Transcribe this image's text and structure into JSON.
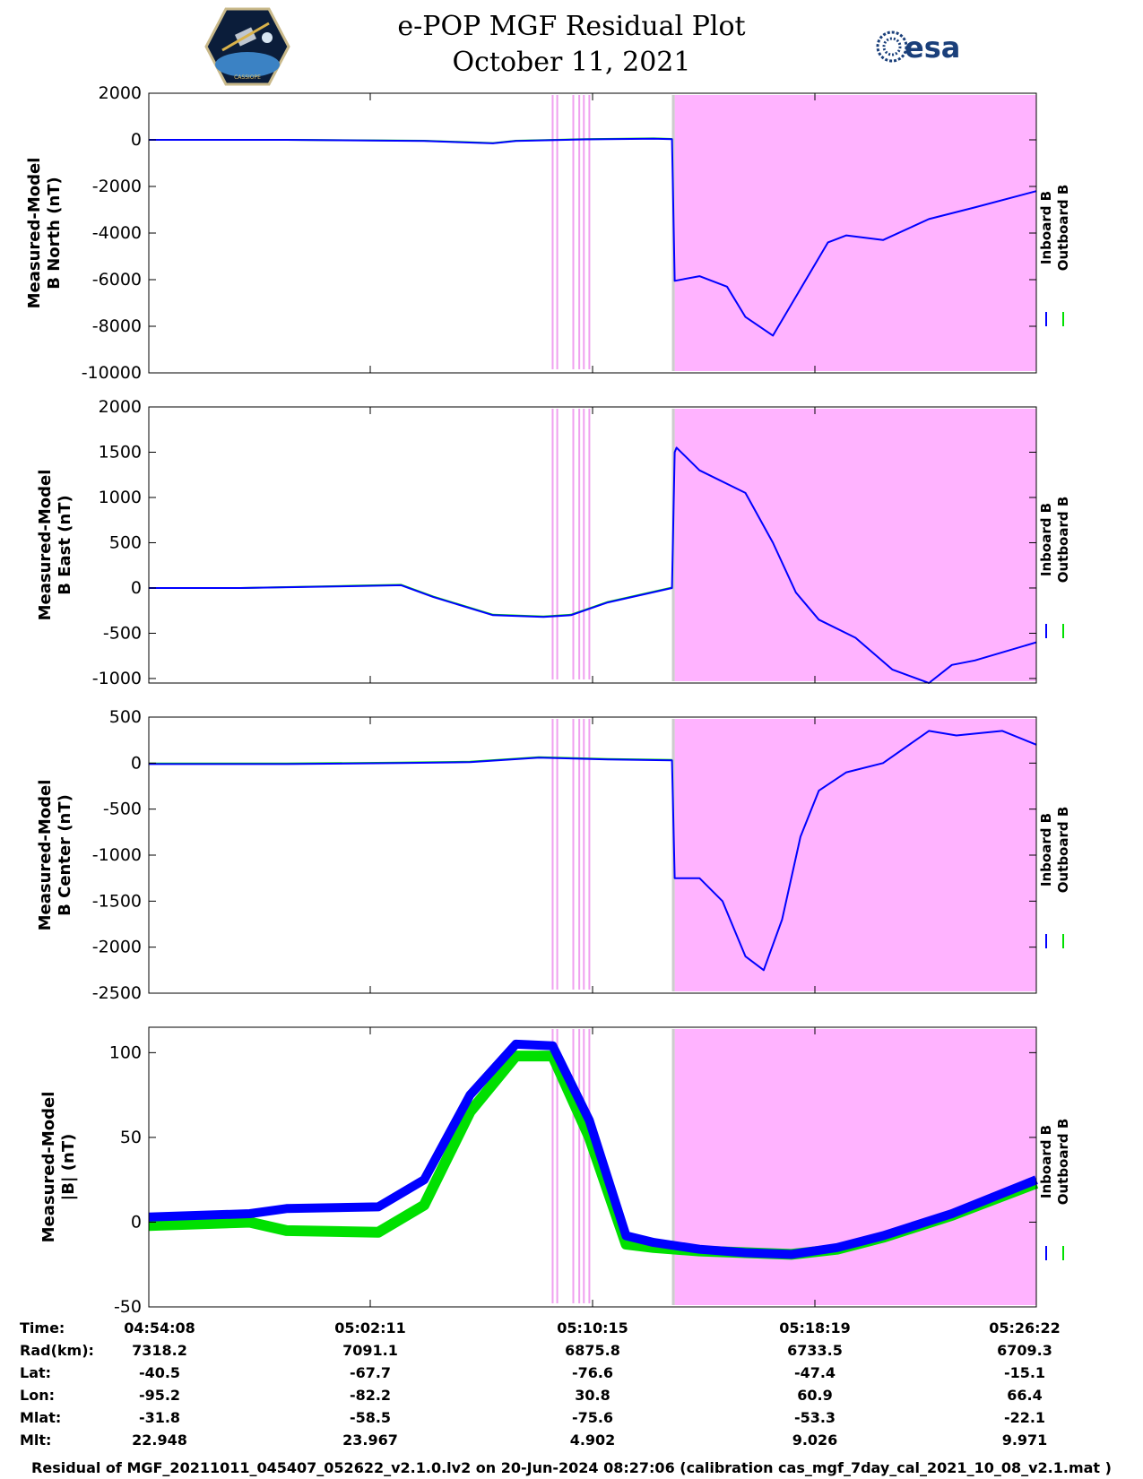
{
  "header": {
    "title": "e-POP MGF Residual Plot",
    "date": "October 11, 2021",
    "logo_left_caption": "CASSIOPE",
    "logo_right_text": "esa"
  },
  "colors": {
    "inboard": "#0000ff",
    "outboard": "#00e000",
    "shade": "#ffb3ff",
    "gray": "#cccccc",
    "marker": "#f0a0f0"
  },
  "legend": {
    "inboard": "Inboard B",
    "outboard": "Outboard B"
  },
  "chart_data": [
    {
      "type": "line",
      "ylabel": [
        "Measured-Model",
        "B North (nT)"
      ],
      "ylim": [
        -10000,
        2000
      ],
      "yticks": [
        2000,
        0,
        -2000,
        -4000,
        -6000,
        -8000,
        -10000
      ],
      "xlim": [
        0,
        1934
      ],
      "shaded_x": [
        1146,
        1934
      ],
      "gray_x": [
        1140,
        1146
      ],
      "series": [
        {
          "name": "Inboard B",
          "x": [
            0,
            300,
            600,
            750,
            800,
            950,
            1100,
            1140,
            1146,
            1200,
            1260,
            1300,
            1360,
            1420,
            1480,
            1520,
            1600,
            1700,
            1800,
            1934
          ],
          "values": [
            0,
            0,
            -50,
            -150,
            -50,
            20,
            50,
            30,
            -6050,
            -5850,
            -6300,
            -7600,
            -8400,
            -6400,
            -4400,
            -4100,
            -4300,
            -3400,
            -2900,
            -2200
          ]
        },
        {
          "name": "Outboard B",
          "x": [
            0,
            300,
            600,
            750,
            800,
            950,
            1100,
            1140
          ],
          "values": [
            0,
            0,
            -40,
            -140,
            -40,
            30,
            60,
            40
          ]
        }
      ]
    },
    {
      "type": "line",
      "ylabel": [
        "Measured-Model",
        "B East (nT)"
      ],
      "ylim": [
        -1050,
        2000
      ],
      "yticks": [
        2000,
        1500,
        1000,
        500,
        0,
        -500,
        -1000
      ],
      "xlim": [
        0,
        1934
      ],
      "shaded_x": [
        1146,
        1934
      ],
      "gray_x": [
        1140,
        1146
      ],
      "series": [
        {
          "name": "Inboard B",
          "x": [
            0,
            200,
            450,
            550,
            620,
            750,
            860,
            920,
            1000,
            1140,
            1146,
            1150,
            1200,
            1300,
            1360,
            1410,
            1460,
            1540,
            1620,
            1700,
            1750,
            1800,
            1934
          ],
          "values": [
            0,
            0,
            20,
            30,
            -100,
            -300,
            -320,
            -300,
            -160,
            0,
            1500,
            1550,
            1300,
            1050,
            500,
            -50,
            -350,
            -550,
            -900,
            -1050,
            -850,
            -800,
            -600
          ]
        },
        {
          "name": "Outboard B",
          "x": [
            0,
            200,
            450,
            550,
            620,
            750,
            860,
            920,
            1000,
            1140
          ],
          "values": [
            0,
            0,
            25,
            35,
            -95,
            -295,
            -315,
            -295,
            -155,
            5
          ]
        }
      ]
    },
    {
      "type": "line",
      "ylabel": [
        "Measured-Model",
        "B Center (nT)"
      ],
      "ylim": [
        -2500,
        500
      ],
      "yticks": [
        500,
        0,
        -500,
        -1000,
        -1500,
        -2000,
        -2500
      ],
      "xlim": [
        0,
        1934
      ],
      "shaded_x": [
        1146,
        1934
      ],
      "gray_x": [
        1140,
        1146
      ],
      "series": [
        {
          "name": "Inboard B",
          "x": [
            0,
            300,
            550,
            700,
            850,
            1000,
            1140,
            1146,
            1200,
            1250,
            1300,
            1340,
            1380,
            1420,
            1460,
            1520,
            1600,
            1700,
            1760,
            1860,
            1934
          ],
          "values": [
            -10,
            -10,
            0,
            10,
            60,
            40,
            30,
            -1250,
            -1250,
            -1500,
            -2100,
            -2250,
            -1700,
            -800,
            -300,
            -100,
            0,
            350,
            300,
            350,
            200
          ]
        },
        {
          "name": "Outboard B",
          "x": [
            0,
            300,
            550,
            700,
            850,
            1000,
            1140
          ],
          "values": [
            -5,
            -5,
            5,
            15,
            65,
            45,
            35
          ]
        }
      ]
    },
    {
      "type": "line",
      "ylabel": [
        "Measured-Model",
        "|B| (nT)"
      ],
      "ylim": [
        -50,
        115
      ],
      "yticks": [
        100,
        50,
        0,
        -50
      ],
      "xlim": [
        0,
        1934
      ],
      "shaded_x": [
        1146,
        1934
      ],
      "gray_x": [
        1140,
        1146
      ],
      "series": [
        {
          "name": "Inboard B",
          "x": [
            0,
            220,
            300,
            500,
            600,
            700,
            800,
            880,
            960,
            1040,
            1100,
            1200,
            1300,
            1400,
            1500,
            1600,
            1750,
            1934
          ],
          "values": [
            3,
            5,
            8,
            9,
            25,
            75,
            105,
            104,
            60,
            -8,
            -12,
            -16,
            -18,
            -19,
            -15,
            -8,
            5,
            25
          ]
        },
        {
          "name": "Outboard B",
          "x": [
            0,
            220,
            300,
            500,
            600,
            700,
            800,
            880,
            960,
            1040,
            1100,
            1200,
            1300,
            1400,
            1500,
            1600,
            1750,
            1934
          ],
          "values": [
            -2,
            0,
            -5,
            -6,
            10,
            65,
            98,
            98,
            50,
            -13,
            -15,
            -17,
            -18,
            -19,
            -16,
            -9,
            4,
            23
          ]
        }
      ]
    }
  ],
  "markers_x": [
    880,
    890,
    925,
    938,
    948,
    960
  ],
  "table": {
    "labels": [
      "Time:",
      "Rad(km):",
      "Lat:",
      "Lon:",
      "Mlat:",
      "Mlt:"
    ],
    "columns": [
      {
        "Time": "04:54:08",
        "Rad": "7318.2",
        "Lat": "-40.5",
        "Lon": "-95.2",
        "Mlat": "-31.8",
        "Mlt": "22.948"
      },
      {
        "Time": "05:02:11",
        "Rad": "7091.1",
        "Lat": "-67.7",
        "Lon": "-82.2",
        "Mlat": "-58.5",
        "Mlt": "23.967"
      },
      {
        "Time": "05:10:15",
        "Rad": "6875.8",
        "Lat": "-76.6",
        "Lon": "30.8",
        "Mlat": "-75.6",
        "Mlt": "4.902"
      },
      {
        "Time": "05:18:19",
        "Rad": "6733.5",
        "Lat": "-47.4",
        "Lon": "60.9",
        "Mlat": "-53.3",
        "Mlt": "9.026"
      },
      {
        "Time": "05:26:22",
        "Rad": "6709.3",
        "Lat": "-15.1",
        "Lon": "66.4",
        "Mlat": "-22.1",
        "Mlt": "9.971"
      }
    ]
  },
  "footer": "Residual of MGF_20211011_045407_052622_v2.1.0.lv2 on 20-Jun-2024 08:27:06 (calibration cas_mgf_7day_cal_2021_10_08_v2.1.mat )"
}
